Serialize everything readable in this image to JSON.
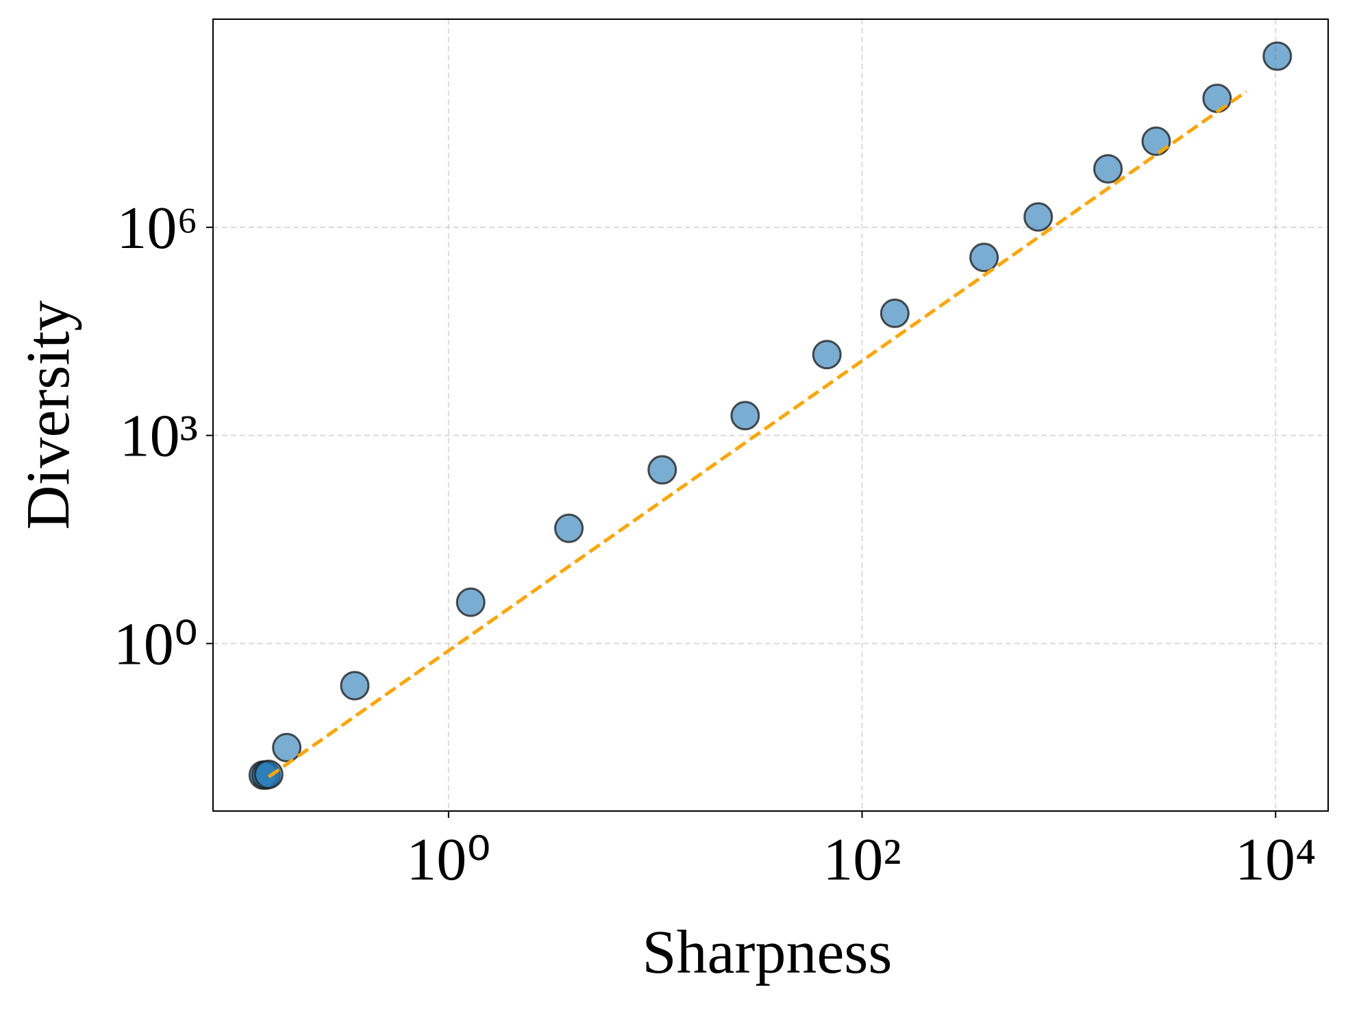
{
  "chart_data": {
    "type": "scatter",
    "xlabel": "Sharpness",
    "ylabel": "Diversity",
    "log_x": true,
    "log_y": true,
    "grid": true,
    "xlim": [
      0.0726,
      17950
    ],
    "ylim": [
      0.00385,
      1000000000
    ],
    "xticks": [
      {
        "value": 1,
        "label": "10⁰"
      },
      {
        "value": 100,
        "label": "10²"
      },
      {
        "value": 10000,
        "label": "10⁴"
      }
    ],
    "yticks": [
      {
        "value": 1,
        "label": "10⁰"
      },
      {
        "value": 1000,
        "label": "10³"
      },
      {
        "value": 1000000,
        "label": "10⁶"
      }
    ],
    "series": [
      {
        "mode": "markers",
        "color": "#1f77b4",
        "x": [
          0.127,
          0.131,
          0.135,
          0.165,
          0.352,
          1.28,
          3.82,
          10.8,
          27.2,
          67.6,
          144,
          389,
          711,
          1546,
          2645,
          5210,
          10190
        ],
        "values": [
          0.0127,
          0.0127,
          0.013,
          0.0316,
          0.247,
          3.94,
          45.8,
          319,
          1928,
          14620,
          57500,
          368000,
          1410000,
          6960000,
          17400000,
          72200000,
          293000000
        ]
      },
      {
        "mode": "lines",
        "color": "#ffa500",
        "x": [
          0.135,
          7220
        ],
        "values": [
          0.012,
          90800000
        ]
      }
    ]
  }
}
